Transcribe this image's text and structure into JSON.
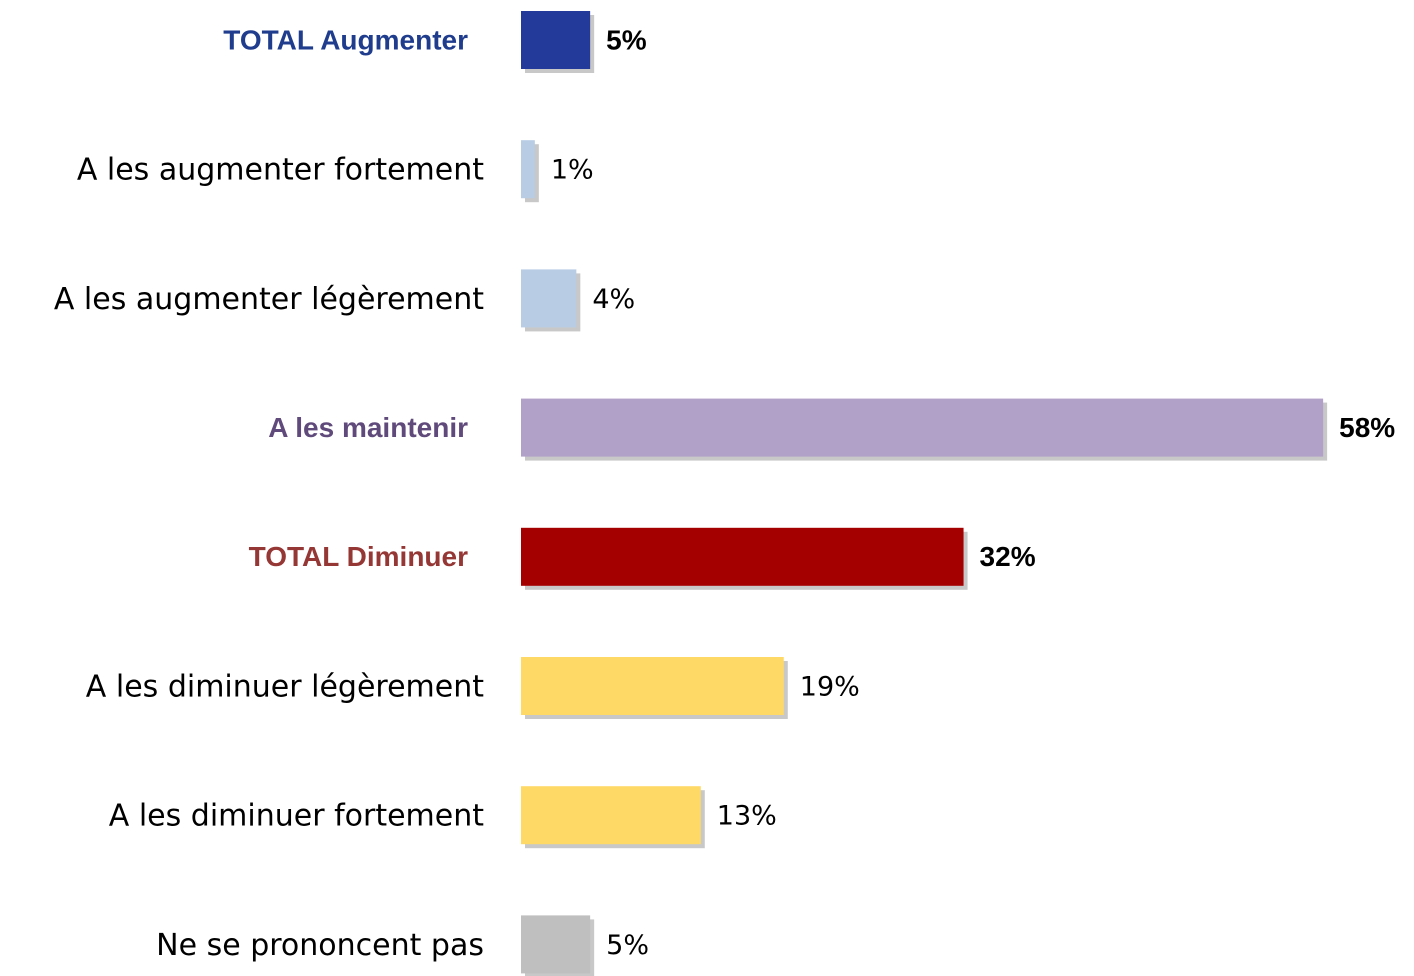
{
  "chart_data": {
    "type": "bar",
    "orientation": "horizontal",
    "categories": [
      "TOTAL Augmenter",
      "A les augmenter fortement",
      "A les augmenter légèrement",
      "A les maintenir",
      "TOTAL Diminuer",
      "A les diminuer légèrement",
      "A les diminuer fortement",
      "Ne se prononcent pas"
    ],
    "values": [
      5,
      1,
      4,
      58,
      32,
      19,
      13,
      5
    ],
    "value_labels": [
      "5%",
      "1%",
      "4%",
      "58%",
      "32%",
      "19%",
      "13%",
      "5%"
    ],
    "colors": [
      "#233a9b",
      "#b8cce4",
      "#b8cce4",
      "#b1a0c7",
      "#a50000",
      "#ffd966",
      "#ffd966",
      "#bfbfbf"
    ],
    "category_colors": [
      "#1f3d8c",
      "#000000",
      "#000000",
      "#604a7b",
      "#953735",
      "#000000",
      "#000000",
      "#000000"
    ],
    "category_bold": [
      true,
      false,
      false,
      true,
      true,
      false,
      false,
      false
    ]
  }
}
